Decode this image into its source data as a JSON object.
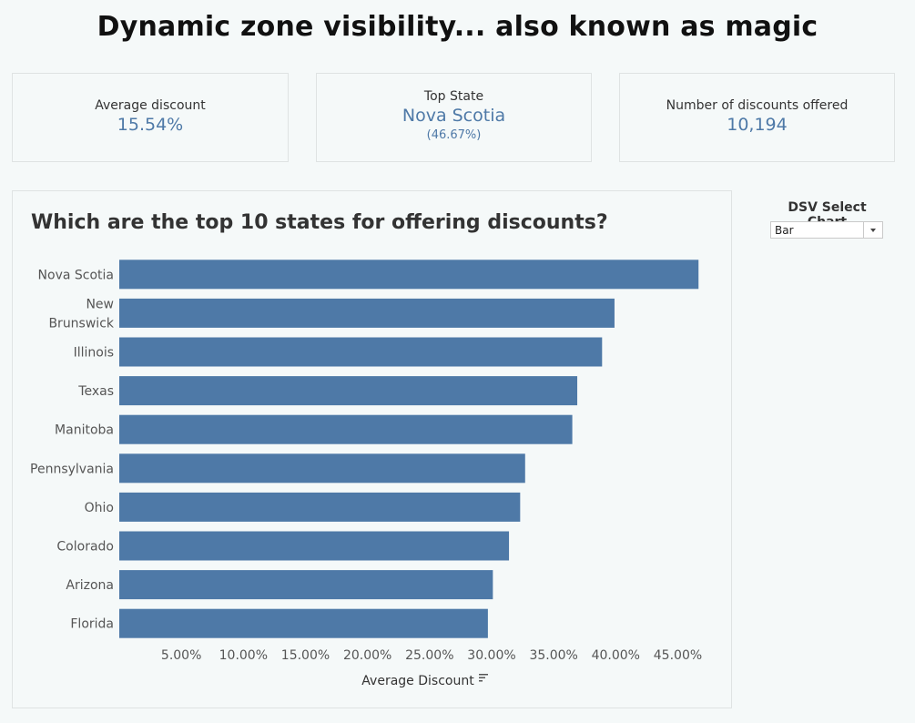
{
  "header": {
    "title": "Dynamic zone visibility... also known as magic"
  },
  "kpis": {
    "avg_discount": {
      "label": "Average discount",
      "value": "15.54%"
    },
    "top_state": {
      "label": "Top State",
      "value": "Nova Scotia",
      "sub": "(46.67%)"
    },
    "num_discounts": {
      "label": "Number of discounts offered",
      "value": "10,194"
    }
  },
  "selector": {
    "label": "DSV Select Chart",
    "value": "Bar"
  },
  "colors": {
    "bar": "#4e79a7",
    "accent": "#4e79a7"
  },
  "chart_data": {
    "type": "bar",
    "orientation": "horizontal",
    "title": "Which are the top 10 states for offering discounts?",
    "categories": [
      [
        "Nova Scotia"
      ],
      [
        "New",
        "Brunswick"
      ],
      [
        "Illinois"
      ],
      [
        "Texas"
      ],
      [
        "Manitoba"
      ],
      [
        "Pennsylvania"
      ],
      [
        "Ohio"
      ],
      [
        "Colorado"
      ],
      [
        "Arizona"
      ],
      [
        "Florida"
      ]
    ],
    "values": [
      46.67,
      39.9,
      38.9,
      36.9,
      36.5,
      32.7,
      32.3,
      31.4,
      30.1,
      29.7
    ],
    "xlabel": "Average Discount",
    "xlim": [
      0,
      47.9
    ],
    "xticks": [
      5,
      10,
      15,
      20,
      25,
      30,
      35,
      40,
      45
    ],
    "xtick_labels": [
      "5.00%",
      "10.00%",
      "15.00%",
      "20.00%",
      "25.00%",
      "30.00%",
      "35.00%",
      "40.00%",
      "45.00%"
    ],
    "grid": false
  }
}
